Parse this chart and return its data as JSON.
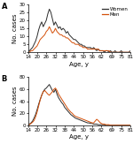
{
  "panel_A_women": [
    1,
    1,
    2,
    3,
    5,
    7,
    10,
    14,
    17,
    19,
    16,
    18,
    20,
    24,
    27,
    25,
    21,
    17,
    19,
    17,
    15,
    16,
    14,
    15,
    14,
    12,
    13,
    11,
    10,
    9,
    8,
    8,
    7,
    6,
    5,
    5,
    4,
    4,
    3,
    3,
    3,
    3,
    2,
    3,
    2,
    1,
    2,
    1,
    1,
    1,
    0,
    1,
    1,
    0,
    1,
    0,
    0,
    1,
    0,
    0,
    0,
    1,
    0,
    0,
    0,
    0,
    0,
    1
  ],
  "panel_A_men": [
    0,
    0,
    1,
    1,
    2,
    3,
    4,
    6,
    8,
    9,
    10,
    11,
    13,
    14,
    16,
    14,
    12,
    13,
    15,
    13,
    12,
    11,
    11,
    10,
    10,
    9,
    9,
    8,
    7,
    6,
    6,
    5,
    5,
    5,
    4,
    4,
    3,
    3,
    3,
    2,
    2,
    2,
    2,
    2,
    2,
    2,
    2,
    1,
    1,
    1,
    1,
    1,
    1,
    1,
    0,
    0,
    0,
    0,
    0,
    0,
    0,
    0,
    0,
    0,
    0,
    0,
    0,
    0
  ],
  "panel_B_women": [
    1,
    2,
    4,
    7,
    12,
    18,
    26,
    35,
    43,
    50,
    56,
    60,
    62,
    65,
    68,
    63,
    58,
    55,
    60,
    52,
    46,
    42,
    38,
    35,
    30,
    27,
    24,
    21,
    18,
    16,
    14,
    12,
    11,
    10,
    9,
    8,
    7,
    6,
    5,
    4,
    4,
    3,
    3,
    2,
    2,
    2,
    1,
    1,
    1,
    1,
    1,
    0,
    0,
    0,
    0,
    0,
    0,
    0,
    0,
    0,
    0,
    0,
    0,
    0,
    0,
    0,
    0,
    0
  ],
  "panel_B_men": [
    1,
    1,
    3,
    5,
    8,
    14,
    22,
    32,
    42,
    50,
    56,
    58,
    55,
    52,
    50,
    53,
    56,
    60,
    62,
    58,
    52,
    48,
    44,
    40,
    36,
    32,
    28,
    25,
    22,
    20,
    17,
    15,
    14,
    13,
    12,
    11,
    10,
    9,
    8,
    7,
    6,
    5,
    4,
    4,
    7,
    10,
    8,
    5,
    3,
    2,
    2,
    1,
    1,
    1,
    0,
    0,
    0,
    0,
    0,
    0,
    0,
    0,
    0,
    0,
    0,
    0,
    0,
    0
  ],
  "ages": [
    14,
    15,
    16,
    17,
    18,
    19,
    20,
    21,
    22,
    23,
    24,
    25,
    26,
    27,
    28,
    29,
    30,
    31,
    32,
    33,
    34,
    35,
    36,
    37,
    38,
    39,
    40,
    41,
    42,
    43,
    44,
    45,
    46,
    47,
    48,
    49,
    50,
    51,
    52,
    53,
    54,
    55,
    56,
    57,
    58,
    59,
    60,
    61,
    62,
    63,
    64,
    65,
    66,
    67,
    68,
    69,
    70,
    71,
    72,
    73,
    74,
    75,
    76,
    77,
    78,
    79,
    80,
    81
  ],
  "panel_A_ylim": [
    0,
    30
  ],
  "panel_A_yticks": [
    0,
    5,
    10,
    15,
    20,
    25,
    30
  ],
  "panel_B_ylim": [
    0,
    80
  ],
  "panel_B_yticks": [
    0,
    20,
    40,
    60,
    80
  ],
  "xticks": [
    14,
    20,
    26,
    32,
    38,
    44,
    50,
    56,
    62,
    69,
    75,
    81
  ],
  "women_color": "#2d2d2d",
  "men_color": "#d4500a",
  "linewidth": 0.7,
  "bg_color": "#ffffff",
  "ylabel": "No. cases",
  "xlabel": "Age, y",
  "label_fontsize": 5,
  "tick_fontsize": 4,
  "legend_fontsize": 4,
  "figsize": [
    1.5,
    1.63
  ],
  "dpi": 100
}
